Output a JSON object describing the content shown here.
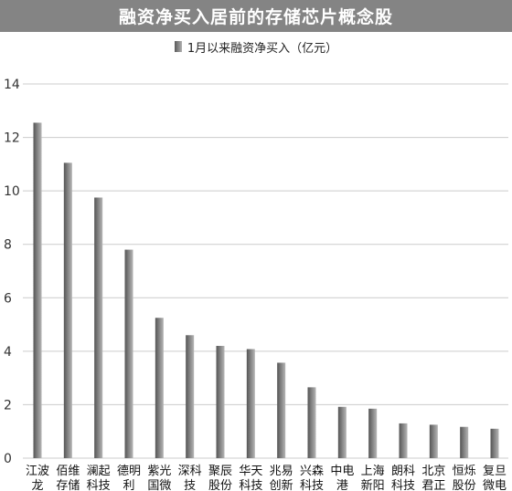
{
  "chart_data": {
    "type": "bar",
    "title": "融资净买入居前的存储芯片概念股",
    "legend": "1月以来融资净买入（亿元）",
    "categories": [
      [
        "江波",
        "龙"
      ],
      [
        "佰维",
        "存储"
      ],
      [
        "澜起",
        "科技"
      ],
      [
        "德明",
        "利"
      ],
      [
        "紫光",
        "国微"
      ],
      [
        "深科",
        "技"
      ],
      [
        "聚辰",
        "股份"
      ],
      [
        "华天",
        "科技"
      ],
      [
        "兆易",
        "创新"
      ],
      [
        "兴森",
        "科技"
      ],
      [
        "中电",
        "港"
      ],
      [
        "上海",
        "新阳"
      ],
      [
        "朗科",
        "科技"
      ],
      [
        "北京",
        "君正"
      ],
      [
        "恒烁",
        "股份"
      ],
      [
        "复旦",
        "微电"
      ]
    ],
    "series": [
      {
        "name": "1月以来融资净买入（亿元）",
        "values": [
          12.55,
          11.05,
          9.75,
          7.8,
          5.25,
          4.6,
          4.2,
          4.08,
          3.57,
          2.65,
          1.92,
          1.85,
          1.3,
          1.25,
          1.17,
          1.1
        ]
      }
    ],
    "ylim": [
      0,
      14
    ],
    "yticks": [
      0,
      2,
      4,
      6,
      8,
      10,
      12,
      14
    ],
    "grid": true,
    "legend_position": "top",
    "colors": {
      "title_bg": "#848484",
      "bar_dark": "#555555",
      "bar_light": "#b5b5b5",
      "grid": "#cccccc"
    }
  }
}
